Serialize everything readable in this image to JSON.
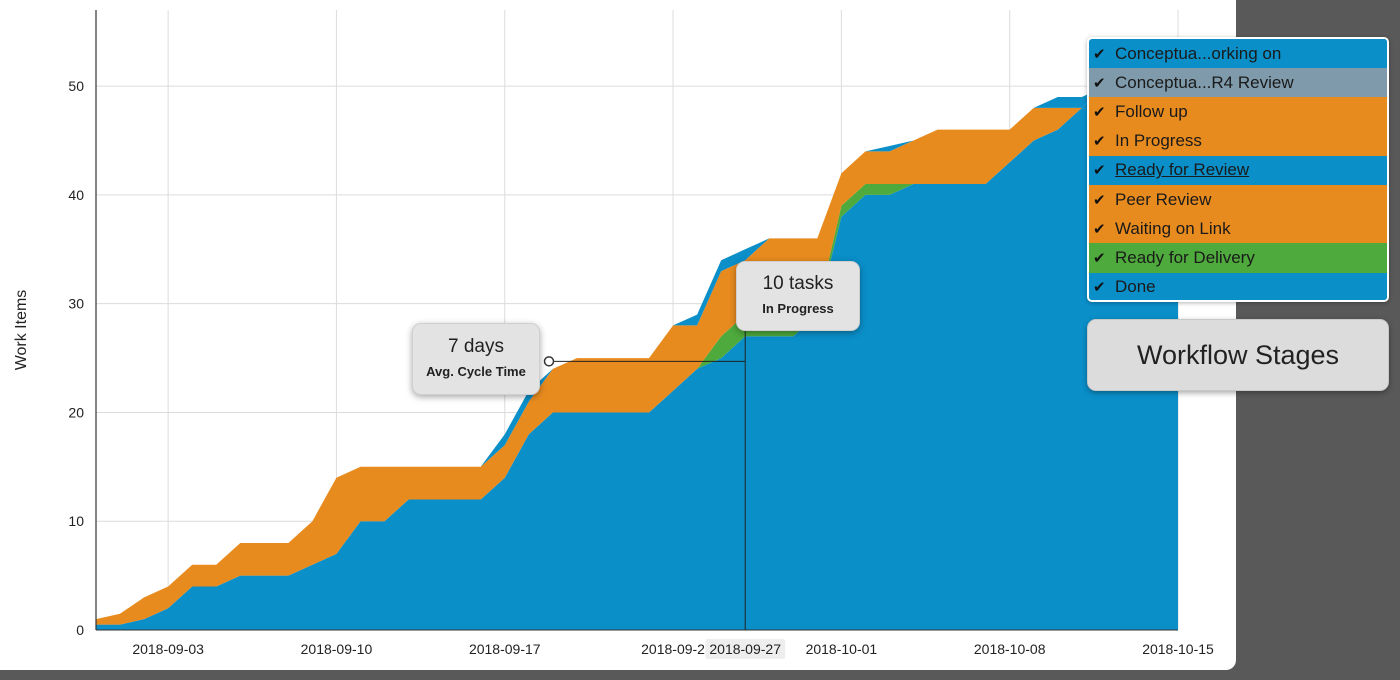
{
  "chart_data": {
    "type": "area",
    "ylabel": "Work Items",
    "ylim": [
      0,
      57
    ],
    "y_ticks": [
      0,
      10,
      20,
      30,
      40,
      50
    ],
    "x_ticks": [
      "2018-09-03",
      "2018-09-10",
      "2018-09-17",
      "2018-09-2",
      "2018-10-01",
      "2018-10-08",
      "2018-10-15"
    ],
    "xlim": [
      "2018-08-31",
      "2018-10-15"
    ],
    "grid": true,
    "stacked": true,
    "x": [
      "2018-08-31",
      "2018-09-01",
      "2018-09-02",
      "2018-09-03",
      "2018-09-04",
      "2018-09-05",
      "2018-09-06",
      "2018-09-07",
      "2018-09-08",
      "2018-09-09",
      "2018-09-10",
      "2018-09-11",
      "2018-09-12",
      "2018-09-13",
      "2018-09-14",
      "2018-09-15",
      "2018-09-16",
      "2018-09-17",
      "2018-09-18",
      "2018-09-19",
      "2018-09-20",
      "2018-09-21",
      "2018-09-22",
      "2018-09-23",
      "2018-09-24",
      "2018-09-25",
      "2018-09-26",
      "2018-09-27",
      "2018-09-28",
      "2018-09-29",
      "2018-09-30",
      "2018-10-01",
      "2018-10-02",
      "2018-10-03",
      "2018-10-04",
      "2018-10-05",
      "2018-10-06",
      "2018-10-07",
      "2018-10-08",
      "2018-10-09",
      "2018-10-10",
      "2018-10-11",
      "2018-10-12",
      "2018-10-13",
      "2018-10-14",
      "2018-10-15"
    ],
    "series": [
      {
        "name": "Done",
        "color": "#0a8fc9",
        "values": [
          0.5,
          0.5,
          1,
          2,
          4,
          4,
          5,
          5,
          5,
          6,
          7,
          10,
          10,
          12,
          12,
          12,
          12,
          14,
          18,
          20,
          20,
          20,
          20,
          20,
          22,
          24,
          25,
          27,
          27,
          27,
          29,
          38,
          40,
          40,
          41,
          41,
          41,
          41,
          43,
          45,
          46,
          48,
          50,
          50,
          50,
          50
        ]
      },
      {
        "name": "Ready for Delivery",
        "color": "#4eaa3c",
        "values": [
          0,
          0,
          0,
          0,
          0,
          0,
          0,
          0,
          0,
          0,
          0,
          0,
          0,
          0,
          0,
          0,
          0,
          0,
          0,
          0,
          0,
          0,
          0,
          0,
          0,
          0,
          2,
          2,
          0.5,
          0.5,
          0.5,
          1,
          1,
          1,
          0,
          0,
          0,
          0,
          0,
          0,
          0,
          0,
          0,
          0,
          0,
          0
        ]
      },
      {
        "name": "Waiting on Link",
        "color": "#e88b1f",
        "values": [
          0,
          0,
          0,
          0,
          0,
          0,
          0,
          0,
          0,
          0,
          0,
          0,
          0,
          0,
          0,
          0,
          0,
          0,
          0,
          0,
          0,
          0,
          0,
          0,
          0,
          0,
          0,
          0,
          0,
          0,
          0,
          0,
          0,
          0,
          0,
          0,
          0,
          0,
          0,
          0,
          0,
          0,
          0,
          0,
          0,
          0
        ]
      },
      {
        "name": "Peer Review",
        "color": "#e88b1f",
        "values": [
          0,
          0,
          0,
          0,
          0,
          0,
          0,
          0,
          0,
          0,
          0,
          0,
          0,
          0,
          0,
          0,
          0,
          0,
          0,
          0,
          0,
          0,
          0,
          0,
          0,
          0,
          0,
          0,
          0,
          0,
          0,
          0,
          0,
          0,
          0,
          0,
          0,
          0,
          0,
          0,
          0,
          0,
          0,
          0,
          0,
          0
        ]
      },
      {
        "name": "Ready for Review",
        "color": "#0a8fc9",
        "values": [
          0,
          0,
          0,
          0,
          0,
          0,
          0,
          0,
          0,
          0,
          0,
          0,
          0,
          0,
          0,
          0,
          0,
          0,
          0,
          0,
          0,
          0,
          0,
          0,
          0,
          0,
          0,
          0,
          0,
          0,
          0,
          0,
          0,
          0,
          0,
          0,
          0,
          0,
          0,
          0,
          0,
          0,
          0,
          0,
          0,
          0
        ]
      },
      {
        "name": "In Progress",
        "color": "#e88b1f",
        "values": [
          0.5,
          1,
          2,
          2,
          2,
          2,
          3,
          3,
          3,
          4,
          7,
          5,
          5,
          3,
          3,
          3,
          3,
          3,
          3,
          4,
          5,
          5,
          5,
          5,
          6,
          4,
          6,
          5,
          8.5,
          8.5,
          6.5,
          3,
          3,
          3,
          4,
          5,
          5,
          5,
          3,
          3,
          2,
          0,
          0,
          0,
          0,
          0
        ]
      },
      {
        "name": "Follow up",
        "color": "#e88b1f",
        "values": [
          0,
          0,
          0,
          0,
          0,
          0,
          0,
          0,
          0,
          0,
          0,
          0,
          0,
          0,
          0,
          0,
          0,
          0,
          0,
          0,
          0,
          0,
          0,
          0,
          0,
          0,
          0,
          0,
          0,
          0,
          0,
          0,
          0,
          0,
          0,
          0,
          0,
          0,
          0,
          0,
          0,
          0,
          0,
          0,
          0,
          0
        ]
      },
      {
        "name": "Conceptua...R4 Review",
        "color": "#7f9aab",
        "values": [
          0,
          0,
          0,
          0,
          0,
          0,
          0,
          0,
          0,
          0,
          0,
          0,
          0,
          0,
          0,
          0,
          0,
          0,
          0,
          0,
          0,
          0,
          0,
          0,
          0,
          0,
          0,
          0,
          0,
          0,
          0,
          0,
          0,
          0,
          0,
          0,
          0,
          0,
          0,
          0,
          0,
          0,
          0,
          0,
          0,
          0
        ]
      },
      {
        "name": "Conceptua...orking on",
        "color": "#0a8fc9",
        "values": [
          0,
          0,
          0,
          0,
          0,
          0,
          0,
          0,
          0,
          0,
          0,
          0,
          0,
          0,
          0,
          0,
          0,
          1,
          1,
          0,
          0,
          0,
          0,
          0,
          0,
          1,
          1,
          1,
          0,
          0,
          0,
          0,
          0,
          0.5,
          0,
          0,
          0,
          0,
          0,
          0,
          1,
          1,
          0,
          0,
          0,
          0
        ]
      }
    ],
    "annotations": [
      {
        "value": "7 days",
        "label": "Avg. Cycle Time"
      },
      {
        "value": "10 tasks",
        "label": "In Progress"
      }
    ],
    "hover_date": "2018-09-27"
  },
  "legend": {
    "items": [
      {
        "label": "Conceptua...orking on",
        "color": "#0a8fc9"
      },
      {
        "label": "Conceptua...R4 Review",
        "color": "#7f9aab"
      },
      {
        "label": "Follow up",
        "color": "#e88b1f"
      },
      {
        "label": "In Progress",
        "color": "#e88b1f"
      },
      {
        "label": "Ready for Review",
        "color": "#0a8fc9"
      },
      {
        "label": "Peer Review",
        "color": "#e88b1f"
      },
      {
        "label": "Waiting on Link",
        "color": "#e88b1f"
      },
      {
        "label": "Ready for Delivery",
        "color": "#4eaa3c"
      },
      {
        "label": "Done",
        "color": "#0a8fc9"
      }
    ],
    "check_icon": "check-icon",
    "title": "Workflow Stages"
  },
  "callouts": {
    "cycle": {
      "value": "7 days",
      "label": "Avg. Cycle Time"
    },
    "wip": {
      "value": "10 tasks",
      "label": "In Progress"
    }
  }
}
